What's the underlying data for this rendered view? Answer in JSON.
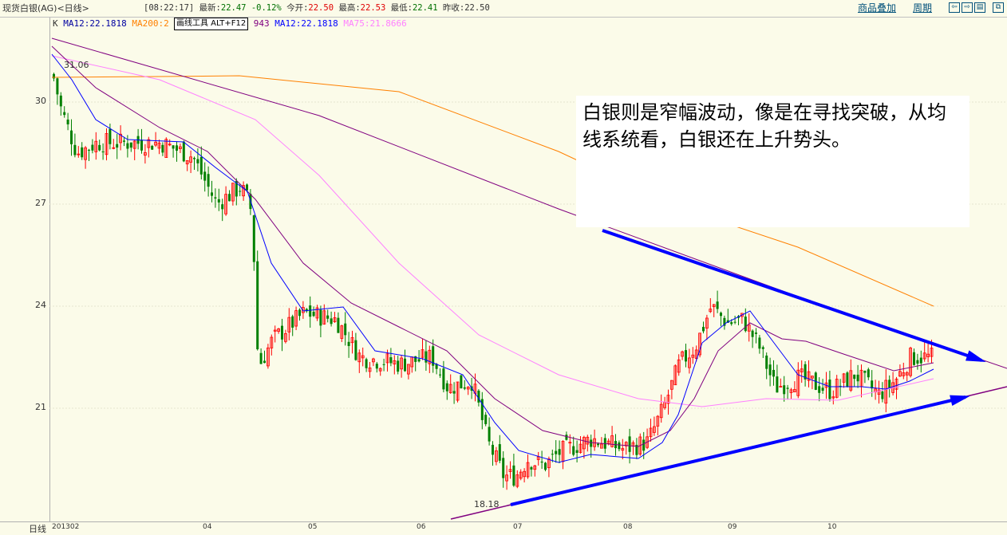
{
  "header": {
    "title": "现货白银(AG)<日线>",
    "time": "[08:22:17]",
    "latest_label": "最新:",
    "latest": "22.47",
    "change": "-0.12%",
    "open_label": "今开:",
    "open": "22.50",
    "high_label": "最高:",
    "high": "22.53",
    "low_label": "最低:",
    "low": "22.41",
    "prev_label": "昨收:",
    "prev": "22.50",
    "overlay_link": "商品叠加",
    "period_link": "周期"
  },
  "legend": {
    "k": "K",
    "ma12": "MA12:22.1818",
    "ma200": "MA200:2",
    "hidden_tail": "943",
    "ma12b": "MA12:22.1818",
    "ma75": "MA75:21.8666"
  },
  "tooltip": "画线工具 ALT+F12",
  "y_ticks": [
    "30",
    "27",
    "24",
    "21"
  ],
  "x_ticks": [
    "201302",
    "04",
    "05",
    "06",
    "07",
    "08",
    "09",
    "10"
  ],
  "period_label": "日线",
  "high_mark": "31.06",
  "low_mark": "18.18",
  "annotation": "白银则是窄幅波动，像是在寻找突破，从均线系统看，白银还在上升势头。",
  "colors": {
    "up": "#ff0000",
    "down": "#008000",
    "ma12": "#0000ff",
    "ma200": "#ff8000",
    "ma75": "#ff80ff",
    "ma_long": "#800080",
    "trend": "#0000ff"
  }
}
